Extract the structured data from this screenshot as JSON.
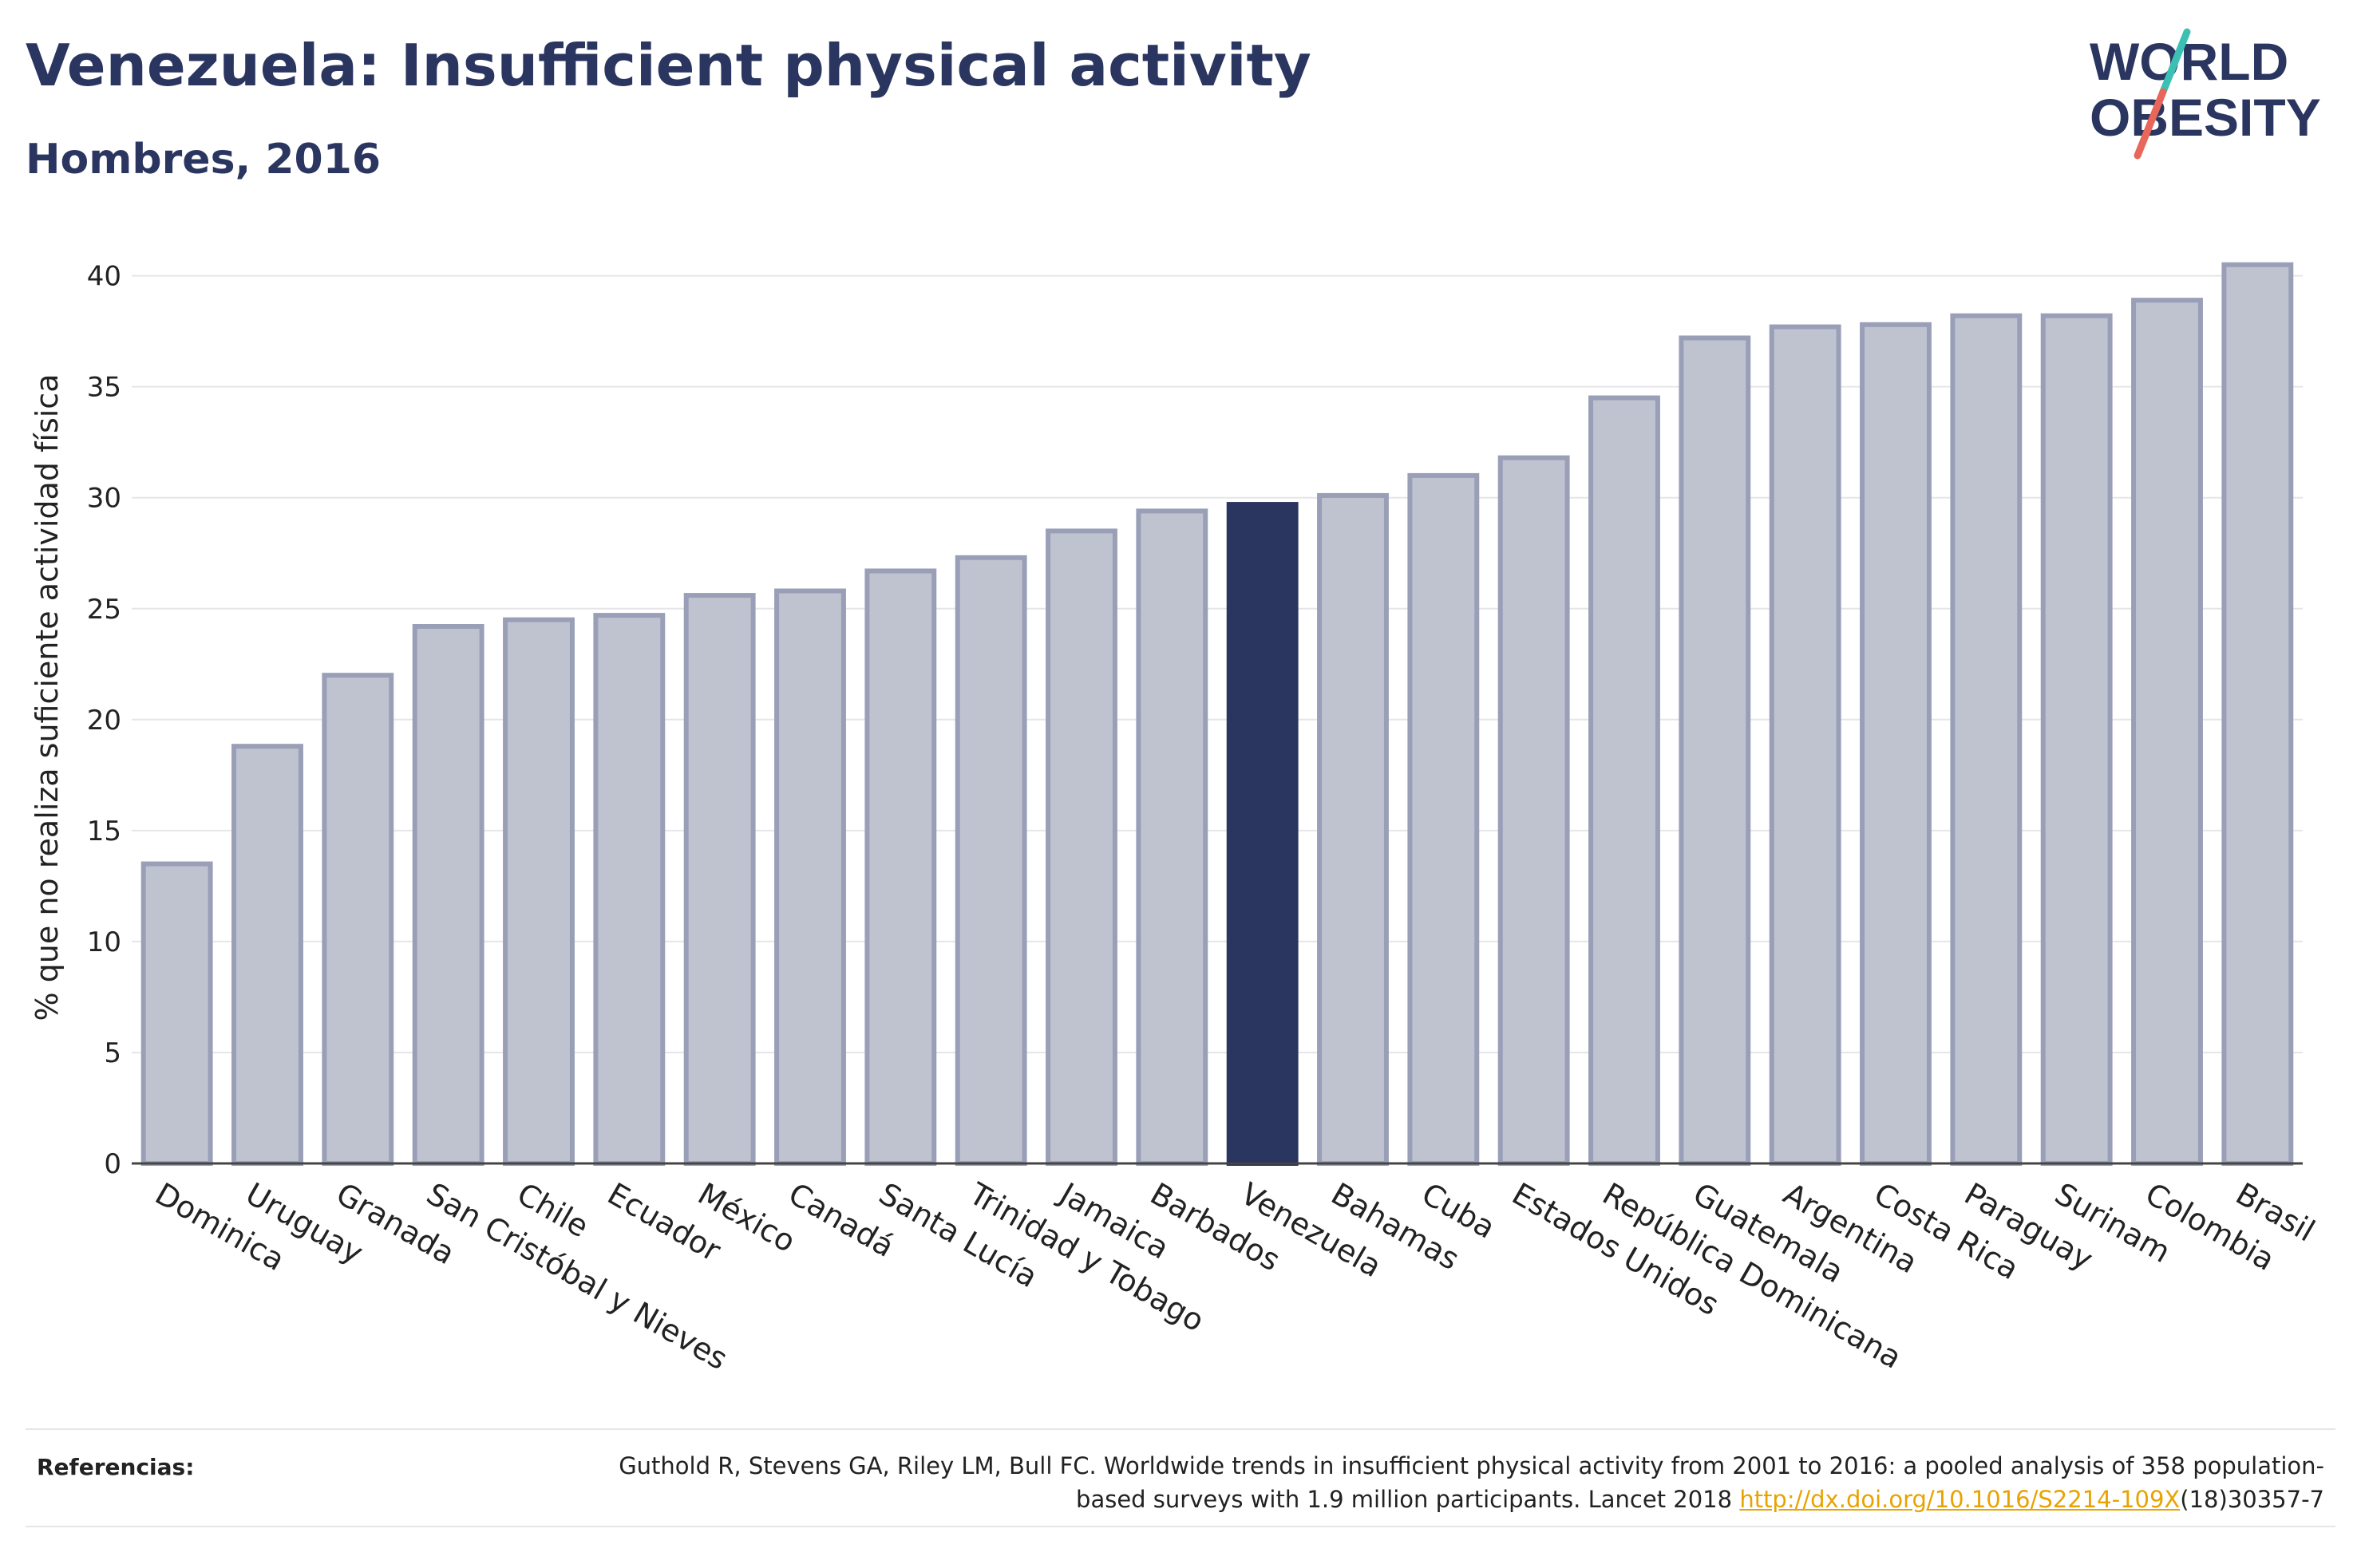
{
  "header": {
    "title": "Venezuela: Insufficient physical activity",
    "subtitle": "Hombres, 2016"
  },
  "logo": {
    "line1": "WORLD",
    "line2": "OBESITY"
  },
  "colors": {
    "bar_fill": "#bfc2cf",
    "bar_stroke": "#9a9fb8",
    "highlight": "#2a3560",
    "text": "#2a3560",
    "grid": "#e6e6ea",
    "link": "#e8a300",
    "logo_slash_top": "#3cc0b4",
    "logo_slash_bottom": "#e8665a"
  },
  "chart_data": {
    "type": "bar",
    "title": "",
    "xlabel": "",
    "ylabel": "% que no realiza suficiente actividad física",
    "ylim": [
      0,
      42
    ],
    "yticks": [
      0,
      5,
      10,
      15,
      20,
      25,
      30,
      35,
      40
    ],
    "grid": true,
    "highlight": "Venezuela",
    "categories": [
      "Dominica",
      "Uruguay",
      "Granada",
      "San Cristóbal y Nieves",
      "Chile",
      "Ecuador",
      "México",
      "Canadá",
      "Santa Lucía",
      "Trinidad y Tobago",
      "Jamaica",
      "Barbados",
      "Venezuela",
      "Bahamas",
      "Cuba",
      "Estados Unidos",
      "República Dominicana",
      "Guatemala",
      "Argentina",
      "Costa Rica",
      "Paraguay",
      "Surinam",
      "Colombia",
      "Brasil"
    ],
    "values": [
      13.5,
      18.8,
      22.0,
      24.2,
      24.5,
      24.7,
      25.6,
      25.8,
      26.7,
      27.3,
      28.5,
      29.4,
      29.7,
      30.1,
      31.0,
      31.8,
      34.5,
      37.2,
      37.7,
      37.8,
      38.2,
      38.2,
      38.9,
      40.5
    ]
  },
  "references": {
    "label": "Referencias:",
    "text_before": "Guthold R, Stevens GA, Riley LM, Bull FC. Worldwide trends in insufficient physical activity from 2001 to 2016: a pooled analysis of 358 population-based surveys with 1.9 million participants. Lancet 2018 ",
    "link": "http://dx.doi.org/10.1016/S2214-109X",
    "text_after": "(18)30357-7"
  }
}
